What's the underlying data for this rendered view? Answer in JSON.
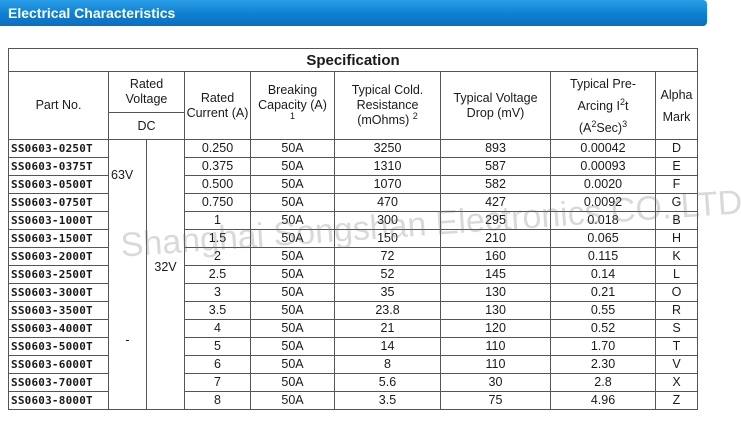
{
  "header": {
    "title": "Electrical Characteristics"
  },
  "table": {
    "title": "Specification",
    "headers": {
      "part_no": "Part No.",
      "rated_voltage": "Rated Voltage",
      "rated_voltage_sub": "DC",
      "rated_current": "Rated Current (A)",
      "breaking_capacity": "Breaking Capacity (A)",
      "breaking_capacity_note": "1",
      "typical_cold_resistance": "Typical Cold. Resistance (mOhms)",
      "typical_cold_resistance_note": "2",
      "typical_voltage_drop": "Typical Voltage Drop (mV)",
      "pre_arcing_line1": "Typical Pre-",
      "pre_arcing_line2": "Arcing I",
      "pre_arcing_sup2": "2",
      "pre_arcing_t": "t",
      "pre_arcing_line3": "(A",
      "pre_arcing_line3_sup": "2",
      "pre_arcing_line3_end": "Sec)",
      "pre_arcing_note": "3",
      "alpha_mark": "Alpha Mark"
    },
    "voltage_groups": {
      "v1": "63V",
      "v2": "32V",
      "v3": "-"
    },
    "rows": [
      {
        "part": "SS0603-0250T",
        "current": "0.250",
        "breaking": "50A",
        "resistance": "3250",
        "vdrop": "893",
        "i2t": "0.00042",
        "mark": "D"
      },
      {
        "part": "SS0603-0375T",
        "current": "0.375",
        "breaking": "50A",
        "resistance": "1310",
        "vdrop": "587",
        "i2t": "0.00093",
        "mark": "E"
      },
      {
        "part": "SS0603-0500T",
        "current": "0.500",
        "breaking": "50A",
        "resistance": "1070",
        "vdrop": "582",
        "i2t": "0.0020",
        "mark": "F"
      },
      {
        "part": "SS0603-0750T",
        "current": "0.750",
        "breaking": "50A",
        "resistance": "470",
        "vdrop": "427",
        "i2t": "0.0092",
        "mark": "G"
      },
      {
        "part": "SS0603-1000T",
        "current": "1",
        "breaking": "50A",
        "resistance": "300",
        "vdrop": "295",
        "i2t": "0.018",
        "mark": "B"
      },
      {
        "part": "SS0603-1500T",
        "current": "1.5",
        "breaking": "50A",
        "resistance": "150",
        "vdrop": "210",
        "i2t": "0.065",
        "mark": "H"
      },
      {
        "part": "SS0603-2000T",
        "current": "2",
        "breaking": "50A",
        "resistance": "72",
        "vdrop": "160",
        "i2t": "0.115",
        "mark": "K"
      },
      {
        "part": "SS0603-2500T",
        "current": "2.5",
        "breaking": "50A",
        "resistance": "52",
        "vdrop": "145",
        "i2t": "0.14",
        "mark": "L"
      },
      {
        "part": "SS0603-3000T",
        "current": "3",
        "breaking": "50A",
        "resistance": "35",
        "vdrop": "130",
        "i2t": "0.21",
        "mark": "O"
      },
      {
        "part": "SS0603-3500T",
        "current": "3.5",
        "breaking": "50A",
        "resistance": "23.8",
        "vdrop": "130",
        "i2t": "0.55",
        "mark": "R"
      },
      {
        "part": "SS0603-4000T",
        "current": "4",
        "breaking": "50A",
        "resistance": "21",
        "vdrop": "120",
        "i2t": "0.52",
        "mark": "S"
      },
      {
        "part": "SS0603-5000T",
        "current": "5",
        "breaking": "50A",
        "resistance": "14",
        "vdrop": "110",
        "i2t": "1.70",
        "mark": "T"
      },
      {
        "part": "SS0603-6000T",
        "current": "6",
        "breaking": "50A",
        "resistance": "8",
        "vdrop": "110",
        "i2t": "2.30",
        "mark": "V"
      },
      {
        "part": "SS0603-7000T",
        "current": "7",
        "breaking": "50A",
        "resistance": "5.6",
        "vdrop": "30",
        "i2t": "2.8",
        "mark": "X"
      },
      {
        "part": "SS0603-8000T",
        "current": "8",
        "breaking": "50A",
        "resistance": "3.5",
        "vdrop": "75",
        "i2t": "4.96",
        "mark": "Z"
      }
    ]
  },
  "watermark": "Shanghai Songshan Electronics CO.,LTD"
}
